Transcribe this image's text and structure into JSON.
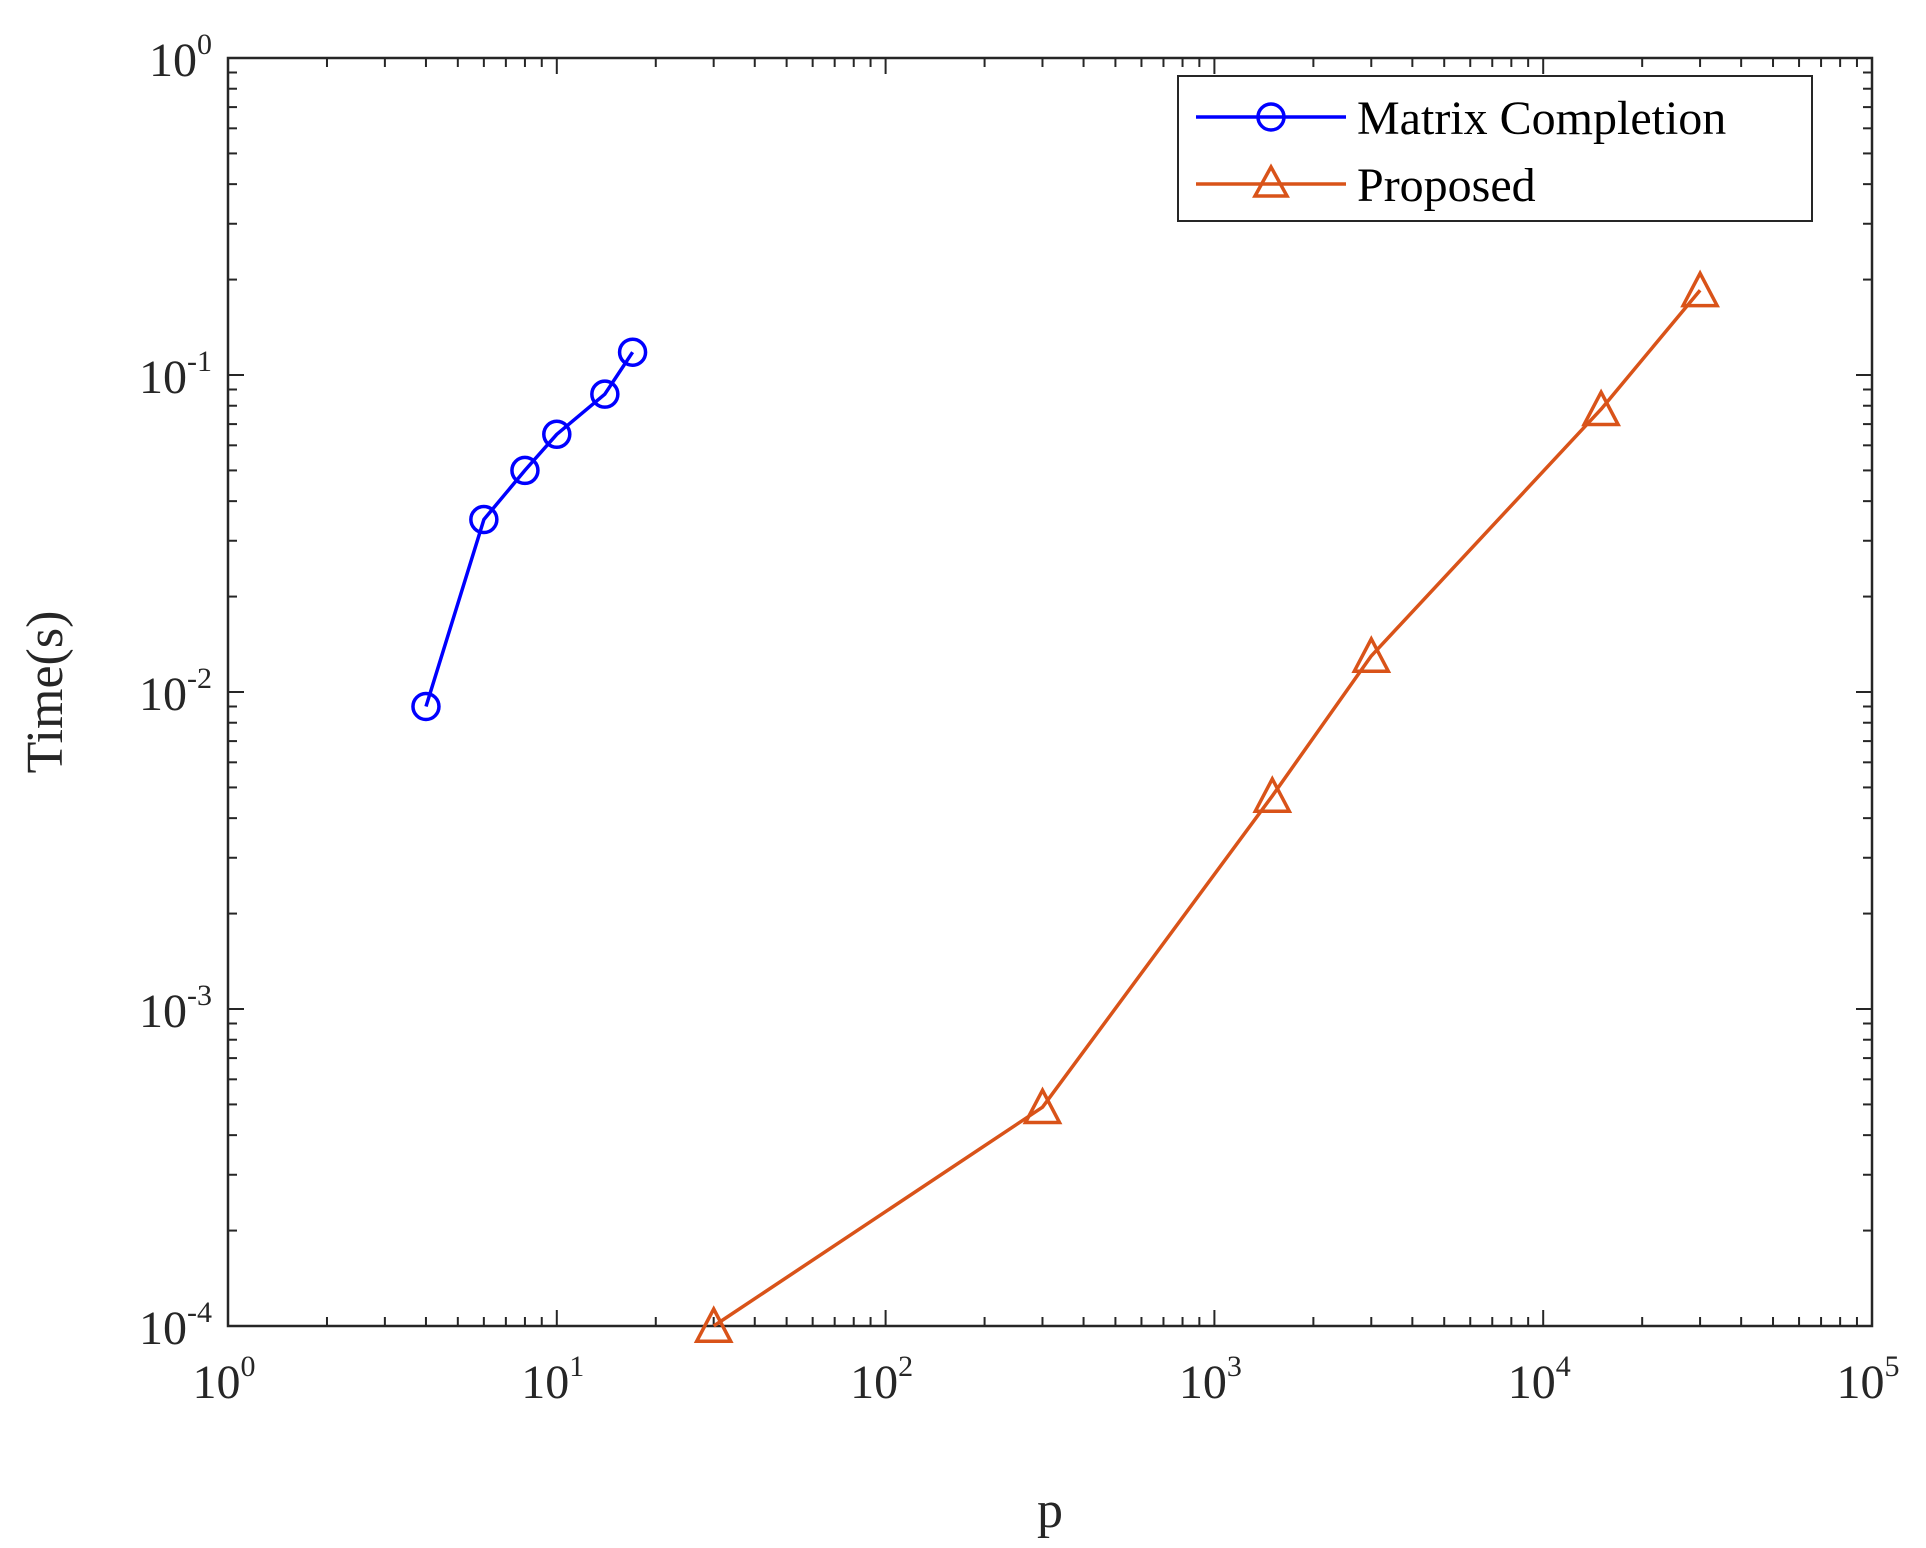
{
  "chart_data": {
    "type": "line",
    "title": "",
    "xlabel": "p",
    "ylabel": "Time(s)",
    "xscale": "log",
    "yscale": "log",
    "xlim": [
      1,
      100000
    ],
    "ylim": [
      0.0001,
      1
    ],
    "x_ticks": [
      {
        "value": 1,
        "base": "10",
        "exp": "0"
      },
      {
        "value": 10,
        "base": "10",
        "exp": "1"
      },
      {
        "value": 100,
        "base": "10",
        "exp": "2"
      },
      {
        "value": 1000,
        "base": "10",
        "exp": "3"
      },
      {
        "value": 10000,
        "base": "10",
        "exp": "4"
      },
      {
        "value": 100000,
        "base": "10",
        "exp": "5"
      }
    ],
    "y_ticks": [
      {
        "value": 0.0001,
        "base": "10",
        "exp": "-4"
      },
      {
        "value": 0.001,
        "base": "10",
        "exp": "-3"
      },
      {
        "value": 0.01,
        "base": "10",
        "exp": "-2"
      },
      {
        "value": 0.1,
        "base": "10",
        "exp": "-1"
      },
      {
        "value": 1,
        "base": "10",
        "exp": "0"
      }
    ],
    "legend_position": "top-right",
    "series": [
      {
        "name": "Matrix Completion",
        "color": "#0000ff",
        "marker": "circle",
        "x": [
          4,
          6,
          8,
          10,
          14,
          17
        ],
        "y": [
          0.009,
          0.035,
          0.05,
          0.065,
          0.087,
          0.118
        ]
      },
      {
        "name": "Proposed",
        "color": "#d95319",
        "marker": "triangle",
        "x": [
          30,
          300,
          1500,
          3000,
          15000,
          30000
        ],
        "y": [
          0.0001,
          0.00049,
          0.0047,
          0.013,
          0.078,
          0.185
        ]
      }
    ]
  }
}
